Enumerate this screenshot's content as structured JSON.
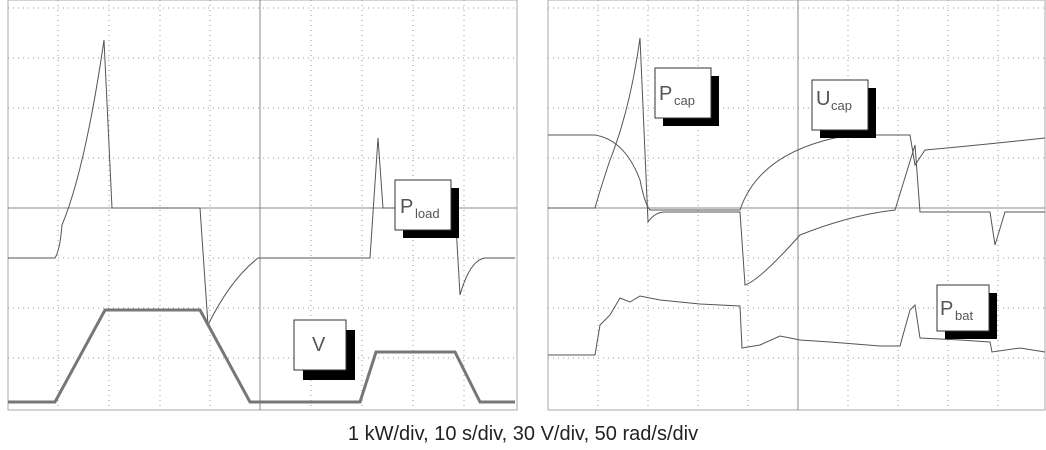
{
  "panels": [
    {
      "labels": [
        {
          "main": "P",
          "sub": "load"
        },
        {
          "main": "V"
        }
      ]
    },
    {
      "labels": [
        {
          "main": "P",
          "sub": "cap"
        },
        {
          "main": "U",
          "sub": "cap"
        },
        {
          "main": "P",
          "sub": "bat"
        }
      ]
    }
  ],
  "caption": "1 kW/div, 10 s/div, 30 V/div, 50 rad/s/div"
}
